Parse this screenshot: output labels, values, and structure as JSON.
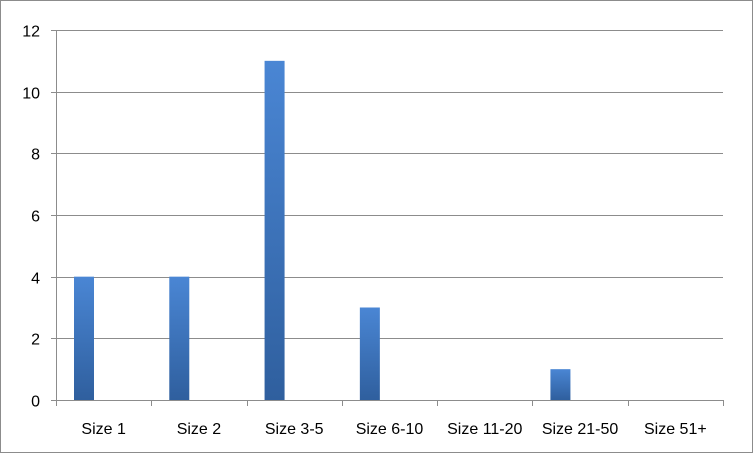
{
  "chart_data": {
    "type": "bar",
    "categories": [
      "Size 1",
      "Size 2",
      "Size 3-5",
      "Size 6-10",
      "Size 11-20",
      "Size 21-50",
      "Size 51+"
    ],
    "series": [
      {
        "values": [
          4,
          4,
          11,
          3,
          0,
          1,
          0
        ]
      }
    ],
    "title": "",
    "xlabel": "",
    "ylabel": "",
    "ylim": [
      0,
      12
    ],
    "yticks": [
      "0",
      "2",
      "4",
      "6",
      "8",
      "10",
      "12"
    ],
    "grid": true,
    "legend": "none",
    "colors": {
      "bar_top": "#4a86d4",
      "bar_bottom": "#2f5f9e",
      "grid": "#8c8c8c",
      "axis": "#8c8c8c"
    }
  }
}
